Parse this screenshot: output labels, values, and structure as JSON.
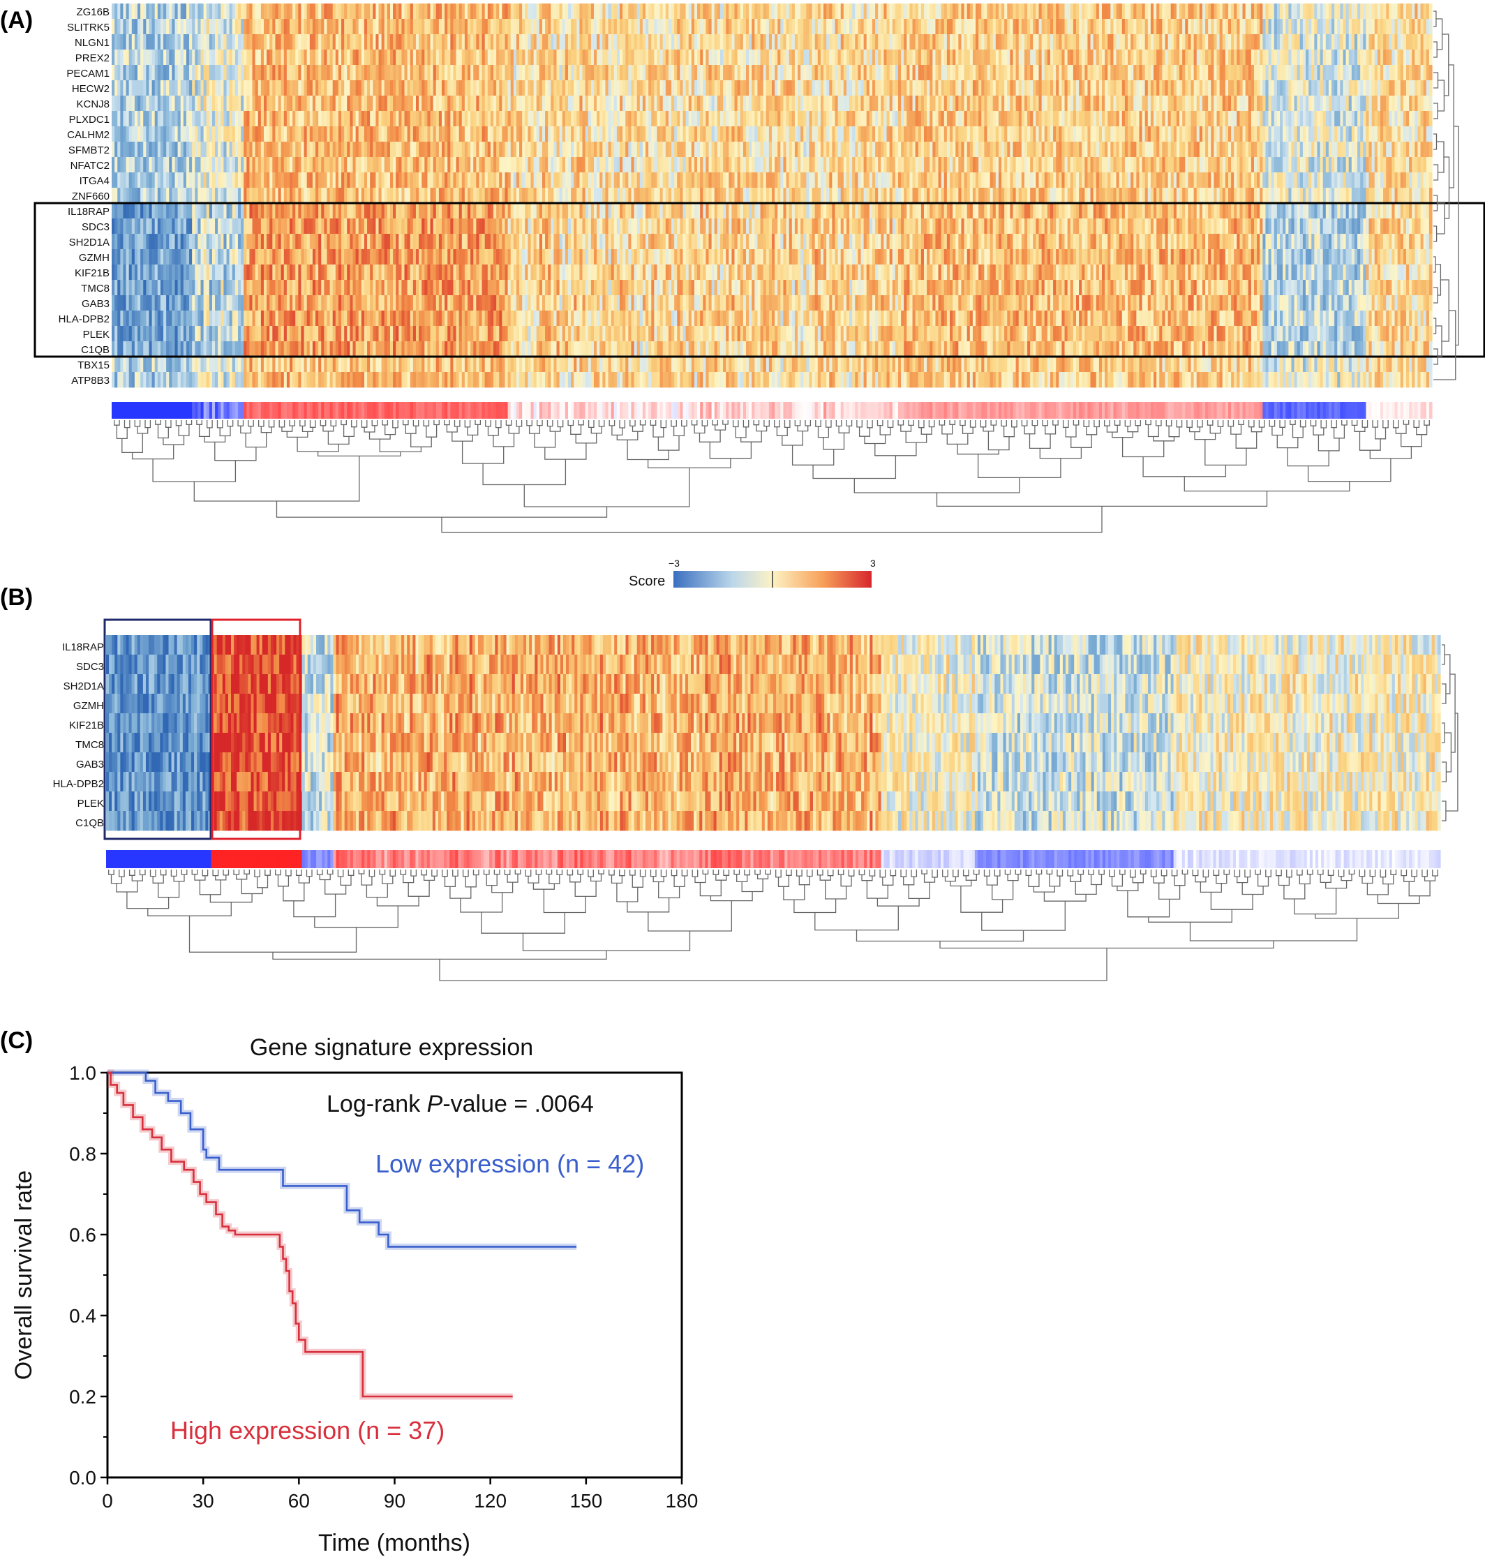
{
  "panels": {
    "a": "(A)",
    "b": "(B)",
    "c": "(C)"
  },
  "colors": {
    "low": "#3a5fcd",
    "high": "#d7303c",
    "blue_box": "#1f2a6b",
    "red_box": "#e0202a"
  },
  "heatmap_a": {
    "genes": [
      "ZG16B",
      "SLITRK5",
      "NLGN1",
      "PREX2",
      "PECAM1",
      "HECW2",
      "KCNJ8",
      "PLXDC1",
      "CALHM2",
      "SFMBT2",
      "NFATC2",
      "ITGA4",
      "ZNF660",
      "IL18RAP",
      "SDC3",
      "SH2D1A",
      "GZMH",
      "KIF21B",
      "TMC8",
      "GAB3",
      "HLA-DPB2",
      "PLEK",
      "C1QB",
      "TBX15",
      "ATP8B3"
    ],
    "boxed_genes": [
      "IL18RAP",
      "SDC3",
      "SH2D1A",
      "GZMH",
      "KIF21B",
      "TMC8",
      "GAB3",
      "HLA-DPB2",
      "PLEK",
      "C1QB"
    ]
  },
  "legend": {
    "label": "Score",
    "min": "−3",
    "max": "3"
  },
  "heatmap_b": {
    "genes": [
      "IL18RAP",
      "SDC3",
      "SH2D1A",
      "GZMH",
      "KIF21B",
      "TMC8",
      "GAB3",
      "HLA-DPB2",
      "PLEK",
      "C1QB"
    ]
  },
  "chart_data": {
    "type": "line",
    "title": "Gene signature expression",
    "xlabel": "Time (months)",
    "ylabel": "Overall survival rate",
    "xlim": [
      0,
      180
    ],
    "ylim": [
      0,
      1.0
    ],
    "xticks": [
      "0",
      "30",
      "60",
      "90",
      "120",
      "150",
      "180"
    ],
    "yticks": [
      "0.0",
      "0.2",
      "0.4",
      "0.6",
      "0.8",
      "1.0"
    ],
    "annotation_prefix": "Log-rank ",
    "annotation_p": "P",
    "annotation_suffix": "-value = .0064",
    "series": [
      {
        "name": "Low expression (n = 42)",
        "color": "#3a5fcd",
        "x": [
          0,
          12,
          15,
          19,
          23,
          26,
          30,
          31,
          35,
          55,
          75,
          79,
          85,
          88,
          147
        ],
        "y": [
          1.0,
          0.98,
          0.95,
          0.93,
          0.9,
          0.86,
          0.81,
          0.79,
          0.76,
          0.72,
          0.66,
          0.63,
          0.6,
          0.57,
          0.57
        ]
      },
      {
        "name": "High expression (n = 37)",
        "color": "#d7303c",
        "x": [
          0,
          1,
          3,
          5,
          8,
          11,
          14,
          17,
          20,
          24,
          27,
          29,
          31,
          34,
          36,
          38,
          40,
          54,
          55,
          56,
          57,
          58,
          59,
          60,
          62,
          80,
          127
        ],
        "y": [
          1.0,
          0.97,
          0.95,
          0.92,
          0.89,
          0.86,
          0.84,
          0.81,
          0.78,
          0.76,
          0.73,
          0.7,
          0.68,
          0.65,
          0.62,
          0.61,
          0.6,
          0.57,
          0.54,
          0.51,
          0.46,
          0.43,
          0.38,
          0.34,
          0.31,
          0.2,
          0.2
        ]
      }
    ]
  }
}
